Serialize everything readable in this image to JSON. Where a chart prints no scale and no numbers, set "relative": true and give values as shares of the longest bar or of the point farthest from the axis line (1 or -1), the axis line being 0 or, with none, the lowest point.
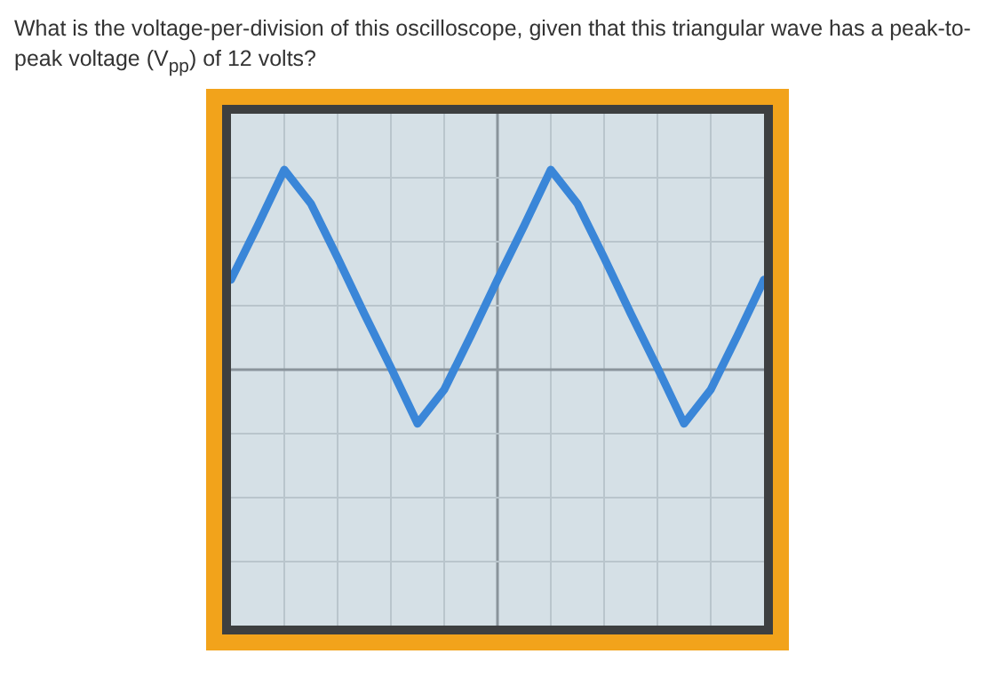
{
  "chart_data": {
    "type": "line",
    "title": "What is the voltage-per-division of this oscilloscope, given that this triangular wave has a peak-to-peak voltage (V$_{pp}$) of 12 volts?",
    "relative": true,
    "categories": [
      null,
      null,
      null,
      null,
      null,
      null,
      null,
      null,
      null,
      null,
      null,
      null,
      null,
      null,
      null,
      null,
      null,
      null,
      null,
      null,
      null
    ],
    "series": [
      {
        "color": "#3a86d8",
        "values": [
          0.45,
          0.72,
          1,
          0.83,
          0.56,
          0.28,
          0.01,
          -0.27,
          -0.1,
          0.17,
          0.45,
          0.72,
          1,
          0.83,
          0.56,
          0.28,
          0.01,
          -0.27,
          -0.1,
          0.17,
          0.45
        ]
      }
    ],
    "grid": true,
    "marker": "none",
    "line_style": "solid",
    "legend": false
  }
}
